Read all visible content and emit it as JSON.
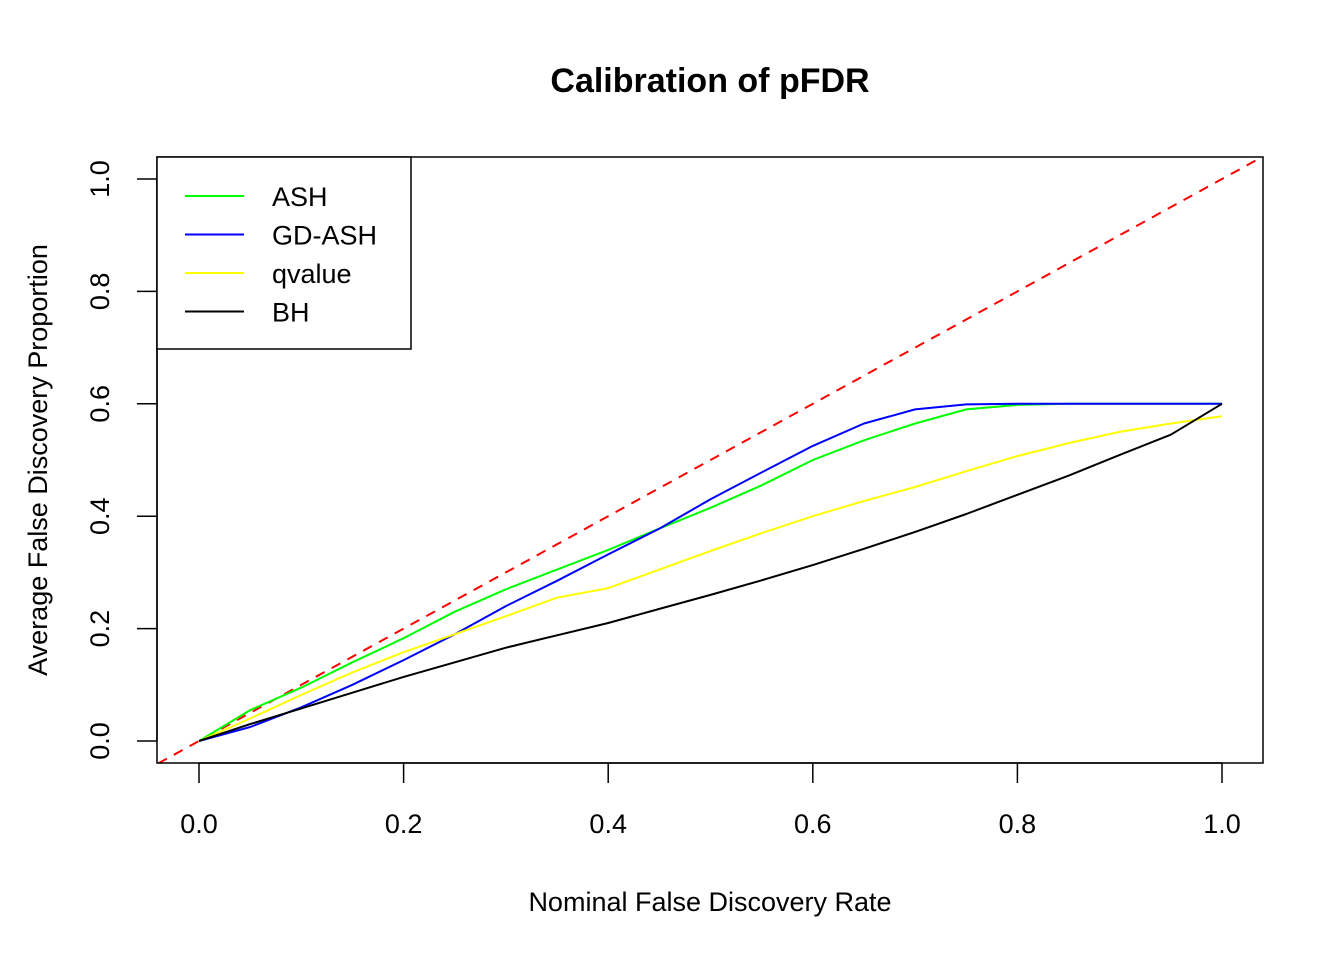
{
  "chart_data": {
    "type": "line",
    "title": "Calibration of pFDR",
    "xlabel": "Nominal False Discovery Rate",
    "ylabel": "Average False Discovery Proportion",
    "xlim": [
      -0.04,
      1.04
    ],
    "ylim": [
      -0.04,
      1.04
    ],
    "xticks": [
      0.0,
      0.2,
      0.4,
      0.6,
      0.8,
      1.0
    ],
    "xtick_labels": [
      "0.0",
      "0.2",
      "0.4",
      "0.6",
      "0.8",
      "1.0"
    ],
    "yticks": [
      0.0,
      0.2,
      0.4,
      0.6,
      0.8,
      1.0
    ],
    "ytick_labels": [
      "0.0",
      "0.2",
      "0.4",
      "0.6",
      "0.8",
      "1.0"
    ],
    "grid": false,
    "legend_position": "top-left",
    "x": [
      0.0,
      0.05,
      0.1,
      0.15,
      0.2,
      0.25,
      0.3,
      0.35,
      0.4,
      0.45,
      0.5,
      0.55,
      0.6,
      0.65,
      0.7,
      0.75,
      0.8,
      0.85,
      0.9,
      0.95,
      1.0
    ],
    "series": [
      {
        "name": "ASH",
        "color": "#00ff00",
        "values": [
          0.0,
          0.055,
          0.095,
          0.14,
          0.183,
          0.23,
          0.27,
          0.305,
          0.34,
          0.378,
          0.415,
          0.455,
          0.5,
          0.535,
          0.565,
          0.59,
          0.598,
          0.6,
          0.6,
          0.6,
          0.6
        ]
      },
      {
        "name": "GD-ASH",
        "color": "#0000ff",
        "values": [
          0.0,
          0.025,
          0.06,
          0.1,
          0.144,
          0.19,
          0.24,
          0.285,
          0.332,
          0.378,
          0.43,
          0.478,
          0.525,
          0.565,
          0.59,
          0.599,
          0.6,
          0.6,
          0.6,
          0.6,
          0.6
        ]
      },
      {
        "name": "qvalue",
        "color": "#ffff00",
        "values": [
          0.0,
          0.04,
          0.082,
          0.122,
          0.158,
          0.19,
          0.222,
          0.255,
          0.272,
          0.305,
          0.338,
          0.37,
          0.4,
          0.427,
          0.452,
          0.48,
          0.507,
          0.53,
          0.55,
          0.565,
          0.578
        ]
      },
      {
        "name": "BH",
        "color": "#000000",
        "values": [
          0.0,
          0.03,
          0.058,
          0.086,
          0.114,
          0.14,
          0.166,
          0.188,
          0.21,
          0.235,
          0.26,
          0.286,
          0.313,
          0.342,
          0.372,
          0.404,
          0.438,
          0.472,
          0.509,
          0.545,
          0.6
        ]
      }
    ],
    "reference_line": {
      "name": "identity",
      "color": "#ff0000",
      "style": "dashed",
      "slope": 1,
      "intercept": 0
    }
  }
}
